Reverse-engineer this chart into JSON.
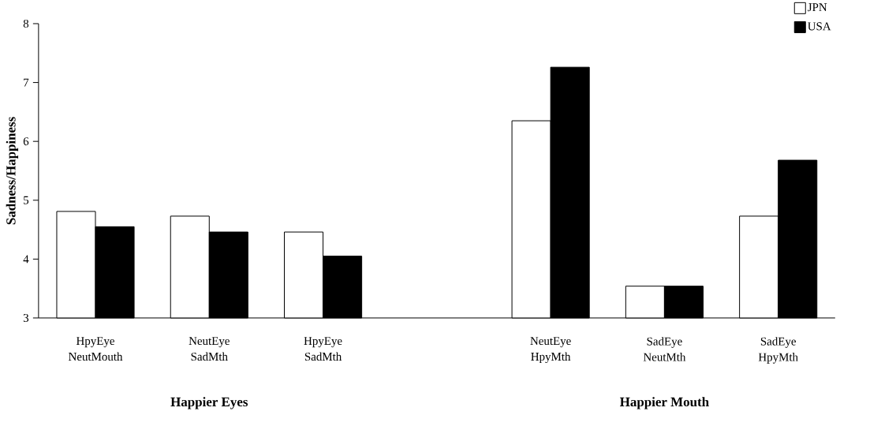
{
  "chart_data": {
    "type": "bar",
    "ylabel": "Sadness/Happiness",
    "categories": [
      "HpyEye NeutMouth",
      "NeutEye SadMth",
      "HpyEye SadMth",
      null,
      "NeutEye HpyMth",
      "SadEye NeutMth",
      "SadEye HpyMth"
    ],
    "series": [
      {
        "name": "JPN",
        "color": "#ffffff",
        "values": [
          4.81,
          4.73,
          4.46,
          null,
          6.35,
          3.54,
          4.73
        ]
      },
      {
        "name": "USA",
        "color": "#000000",
        "values": [
          4.55,
          4.46,
          4.05,
          null,
          7.26,
          3.54,
          5.68
        ]
      }
    ],
    "ylim": [
      3,
      8
    ],
    "yticks": [
      3,
      4,
      5,
      6,
      7,
      8
    ],
    "legend": "top right",
    "grid": false,
    "annotations": [
      "Happier Eyes",
      "Happier Mouth"
    ]
  }
}
